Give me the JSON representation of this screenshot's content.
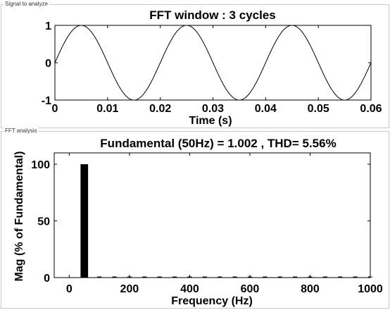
{
  "panels": {
    "signal_label": "Signal to analyze",
    "fft_label": "FFT analysis"
  },
  "chart_data": [
    {
      "type": "line",
      "title": "FFT window : 3 cycles",
      "xlabel": "Time (s)",
      "ylabel": "",
      "xlim": [
        0,
        0.06
      ],
      "ylim": [
        -1,
        1
      ],
      "xticks": [
        "0",
        "0.01",
        "0.02",
        "0.03",
        "0.04",
        "0.05",
        "0.06"
      ],
      "yticks": [
        "-1",
        "0",
        "1"
      ],
      "series": [
        {
          "frequency_hz": 50,
          "amplitude": 1.0,
          "color": "#000000"
        }
      ]
    },
    {
      "type": "bar",
      "title": "Fundamental (50Hz) = 1.002 , THD= 5.56%",
      "xlabel": "Frequency (Hz)",
      "ylabel": "Mag (% of Fundamental)",
      "xlim": [
        -50,
        1000
      ],
      "ylim": [
        0,
        110
      ],
      "xticks": [
        "0",
        "200",
        "400",
        "600",
        "800",
        "1000"
      ],
      "yticks": [
        "0",
        "50",
        "100"
      ],
      "bars": [
        {
          "x": 50,
          "value": 100
        }
      ],
      "color": "#000000"
    }
  ]
}
